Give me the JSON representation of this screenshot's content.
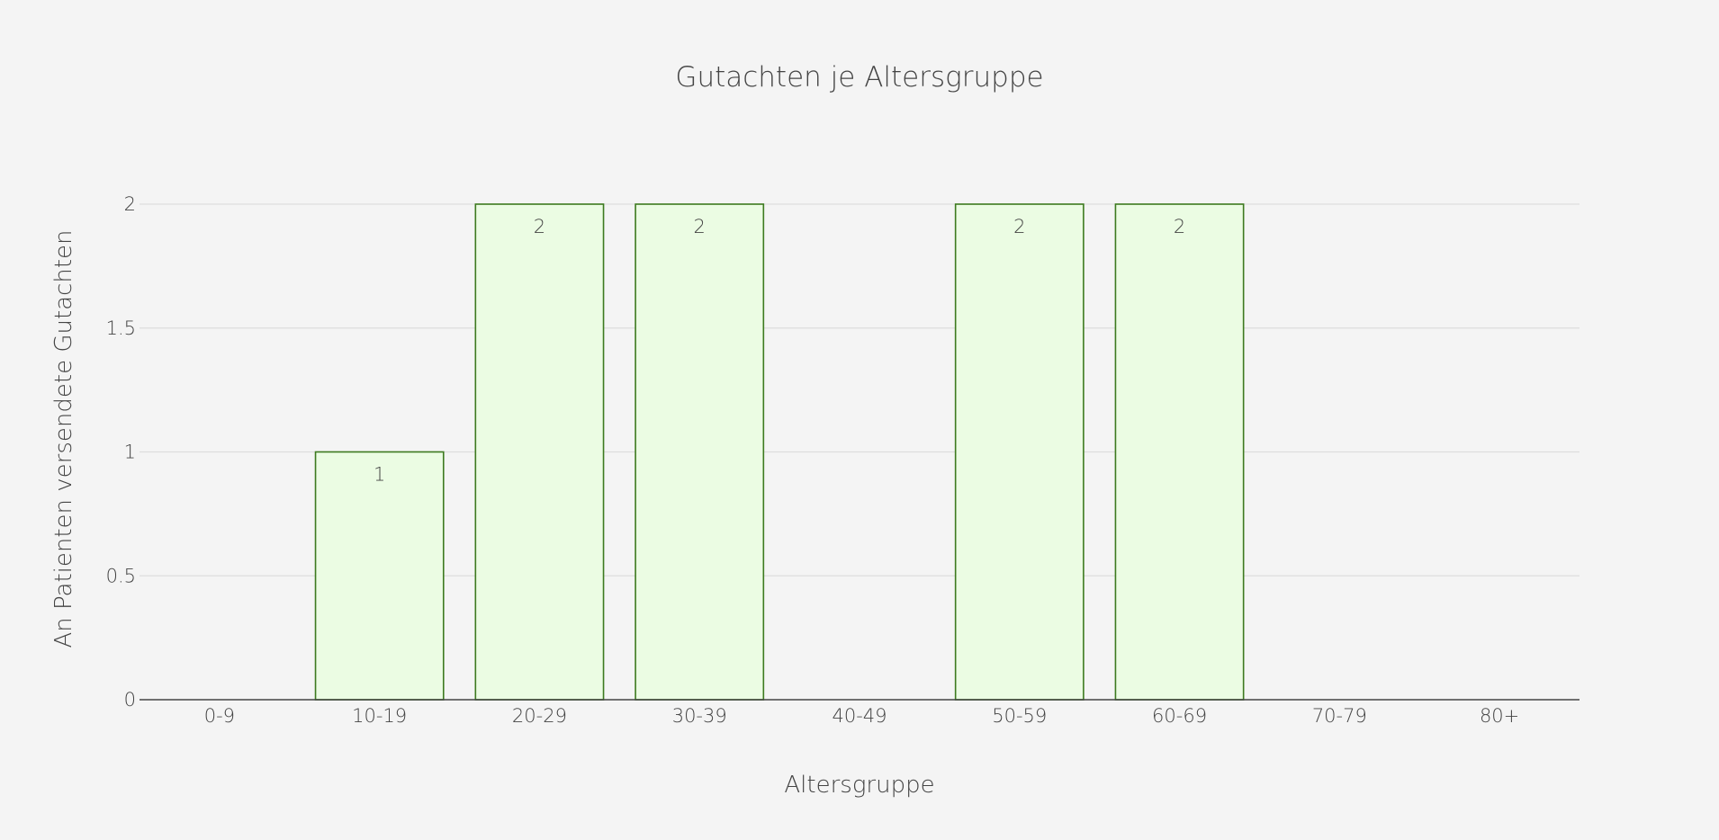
{
  "chart_data": {
    "type": "bar",
    "title": "Gutachten je Altersgruppe",
    "xlabel": "Altersgruppe",
    "ylabel": "An Patienten versendete Gutachten",
    "categories": [
      "0-9",
      "10-19",
      "20-29",
      "30-39",
      "40-49",
      "50-59",
      "60-69",
      "70-79",
      "80+"
    ],
    "values": [
      0,
      1,
      2,
      2,
      0,
      2,
      2,
      0,
      0
    ],
    "ylim": [
      0,
      2
    ],
    "yticks": [
      0,
      0.5,
      1,
      1.5,
      2
    ],
    "ytick_labels": [
      "0",
      "0.5",
      "1",
      "1.5",
      "2"
    ],
    "grid": true,
    "legend": "none",
    "colors": {
      "bar_fill": "#ebfce3",
      "bar_stroke": "#3d7a1f",
      "background": "#f4f4f4",
      "text": "#444444",
      "grid": "#dddddd"
    }
  }
}
